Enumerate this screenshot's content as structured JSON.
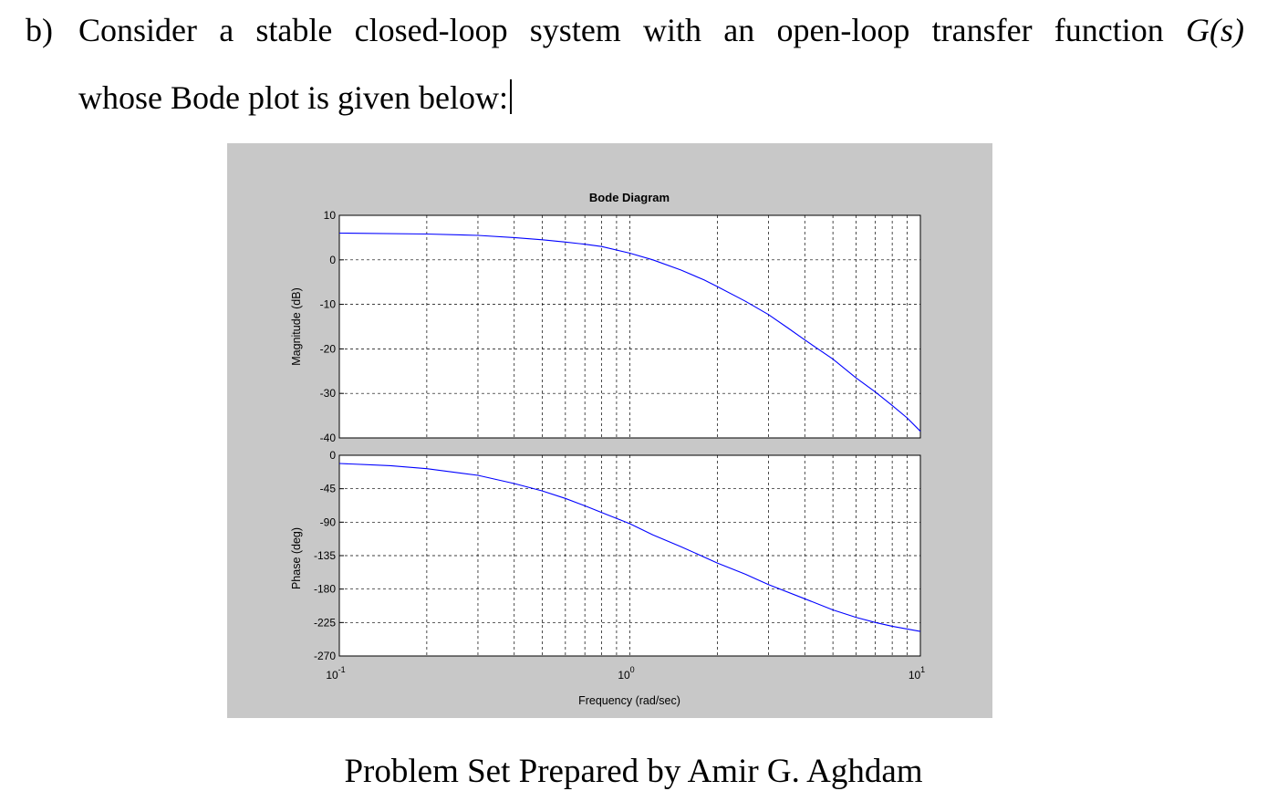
{
  "problem": {
    "label": "b)",
    "line1": "Consider a stable closed-loop system with an open-loop transfer function",
    "function_symbol": "G(s)",
    "line2": "whose Bode plot is given below:"
  },
  "footer": "Problem Set Prepared by Amir G. Aghdam",
  "chart_data": {
    "type": "line",
    "title": "Bode Diagram",
    "xlabel": "Frequency  (rad/sec)",
    "x_scale": "log",
    "xlim": [
      0.1,
      10
    ],
    "x_ticks": [
      {
        "base": "10",
        "exp": "-1"
      },
      {
        "base": "10",
        "exp": "0"
      },
      {
        "base": "10",
        "exp": "1"
      }
    ],
    "grid": true,
    "line_color": "#0000ff",
    "panels": [
      {
        "name": "magnitude",
        "ylabel": "Magnitude (dB)",
        "ylim": [
          -40,
          10
        ],
        "yticks": [
          "10",
          "0",
          "-10",
          "-20",
          "-30",
          "-40"
        ],
        "series": [
          {
            "x": [
              0.1,
              0.2,
              0.3,
              0.4,
              0.5,
              0.6,
              0.7,
              0.8,
              1.0,
              1.2,
              1.5,
              1.8,
              2.0,
              2.5,
              3.0,
              3.5,
              4.0,
              5.0,
              6.0,
              7.0,
              8.0,
              9.0,
              10.0
            ],
            "y": [
              6.0,
              5.8,
              5.5,
              5.0,
              4.5,
              4.0,
              3.5,
              3.0,
              1.5,
              0.0,
              -2.3,
              -4.5,
              -6.0,
              -9.3,
              -12.3,
              -15.3,
              -18.0,
              -22.3,
              -26.5,
              -29.7,
              -32.7,
              -35.5,
              -38.5
            ]
          }
        ]
      },
      {
        "name": "phase",
        "ylabel": "Phase (deg)",
        "ylim": [
          -270,
          0
        ],
        "yticks": [
          "0",
          "-45",
          "-90",
          "-135",
          "-180",
          "-225",
          "-270"
        ],
        "series": [
          {
            "x": [
              0.1,
              0.15,
              0.2,
              0.3,
              0.4,
              0.5,
              0.6,
              0.7,
              0.8,
              1.0,
              1.2,
              1.5,
              2.0,
              2.5,
              3.0,
              4.0,
              5.0,
              6.0,
              7.0,
              8.0,
              10.0
            ],
            "y": [
              -11,
              -14,
              -18,
              -27,
              -38,
              -48,
              -58,
              -68,
              -77,
              -92,
              -107,
              -123,
              -145,
              -160,
              -174,
              -193,
              -208,
              -218,
              -225,
              -230,
              -237
            ]
          }
        ]
      }
    ]
  }
}
